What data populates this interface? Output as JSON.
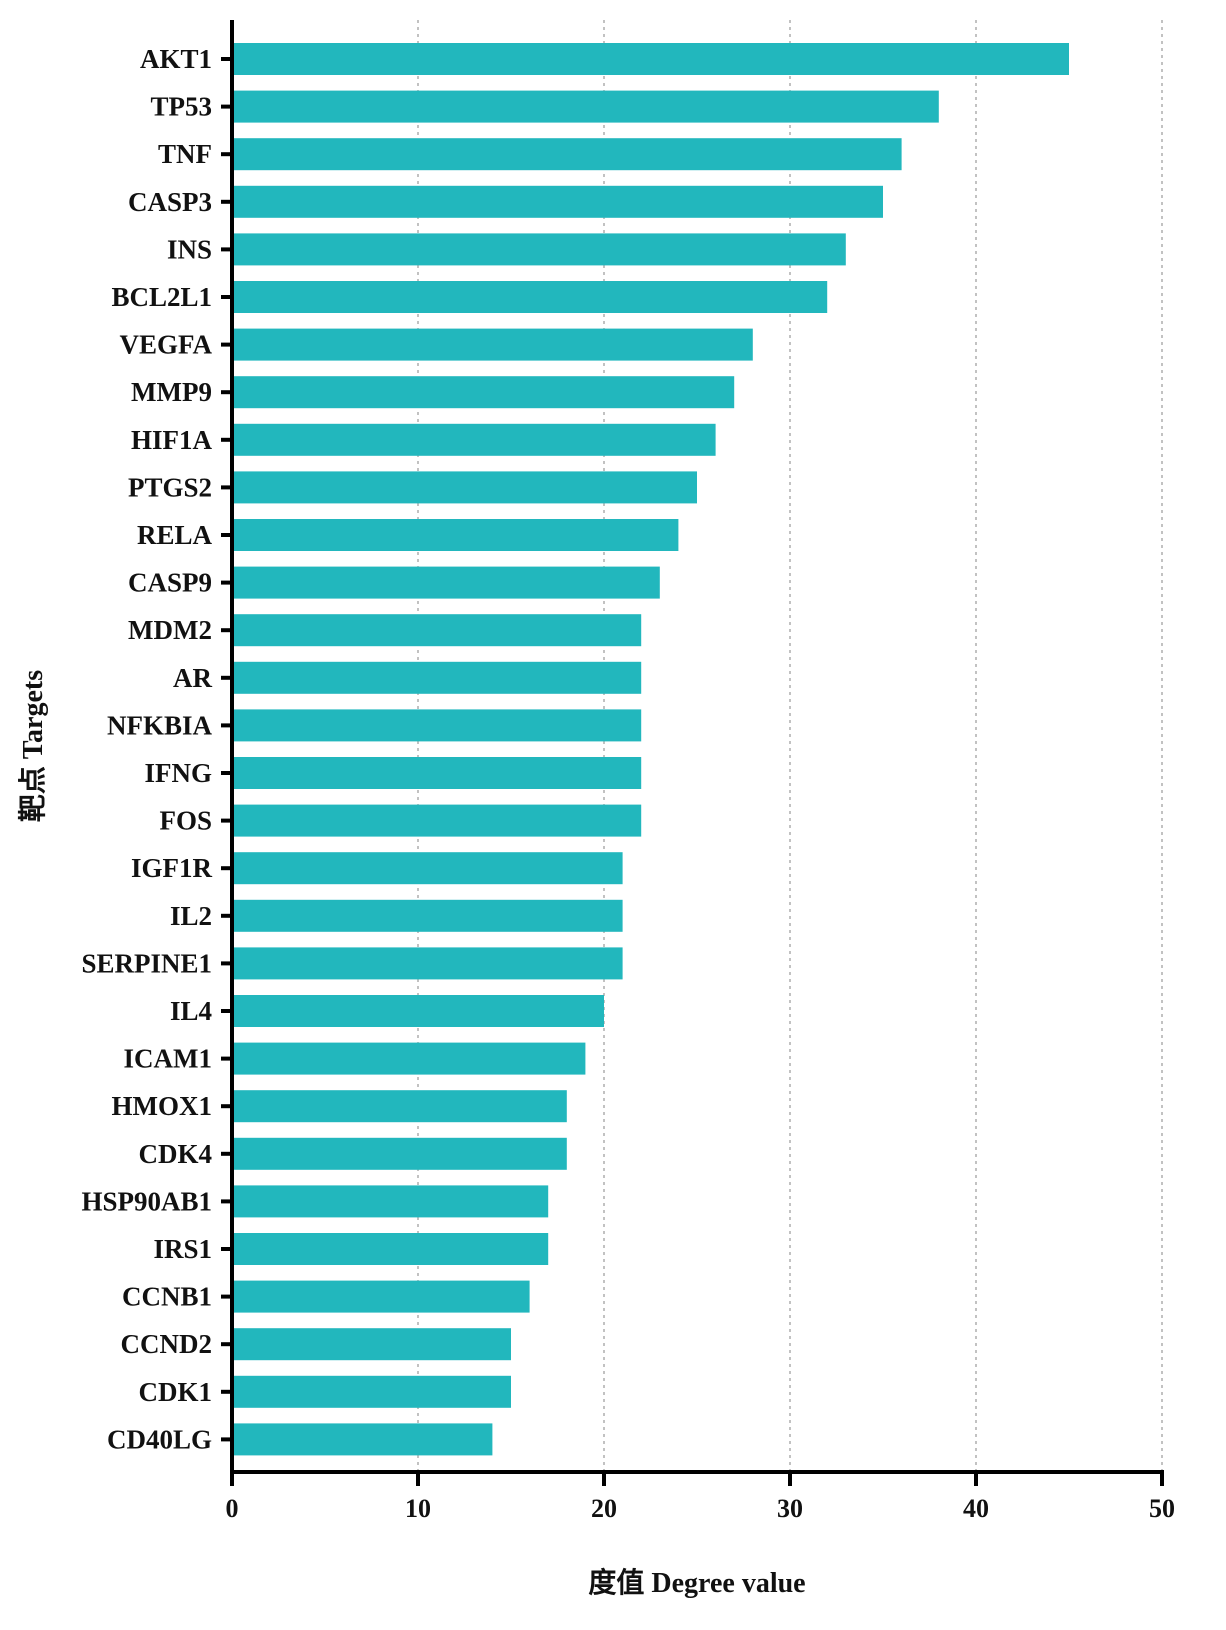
{
  "chart_data": {
    "type": "bar",
    "orientation": "horizontal",
    "xlabel": "度值 Degree value",
    "ylabel": "靶点 Targets",
    "xlim": [
      0,
      50
    ],
    "xticks": [
      0,
      10,
      20,
      30,
      40,
      50
    ],
    "grid": "vertical-dotted",
    "bar_color": "#22b7bd",
    "categories": [
      "AKT1",
      "TP53",
      "TNF",
      "CASP3",
      "INS",
      "BCL2L1",
      "VEGFA",
      "MMP9",
      "HIF1A",
      "PTGS2",
      "RELA",
      "CASP9",
      "MDM2",
      "AR",
      "NFKBIA",
      "IFNG",
      "FOS",
      "IGF1R",
      "IL2",
      "SERPINE1",
      "IL4",
      "ICAM1",
      "HMOX1",
      "CDK4",
      "HSP90AB1",
      "IRS1",
      "CCNB1",
      "CCND2",
      "CDK1",
      "CD40LG"
    ],
    "values": [
      45,
      38,
      36,
      35,
      33,
      32,
      28,
      27,
      26,
      25,
      24,
      23,
      22,
      22,
      22,
      22,
      22,
      21,
      21,
      21,
      20,
      19,
      18,
      18,
      17,
      17,
      16,
      15,
      15,
      14
    ]
  }
}
